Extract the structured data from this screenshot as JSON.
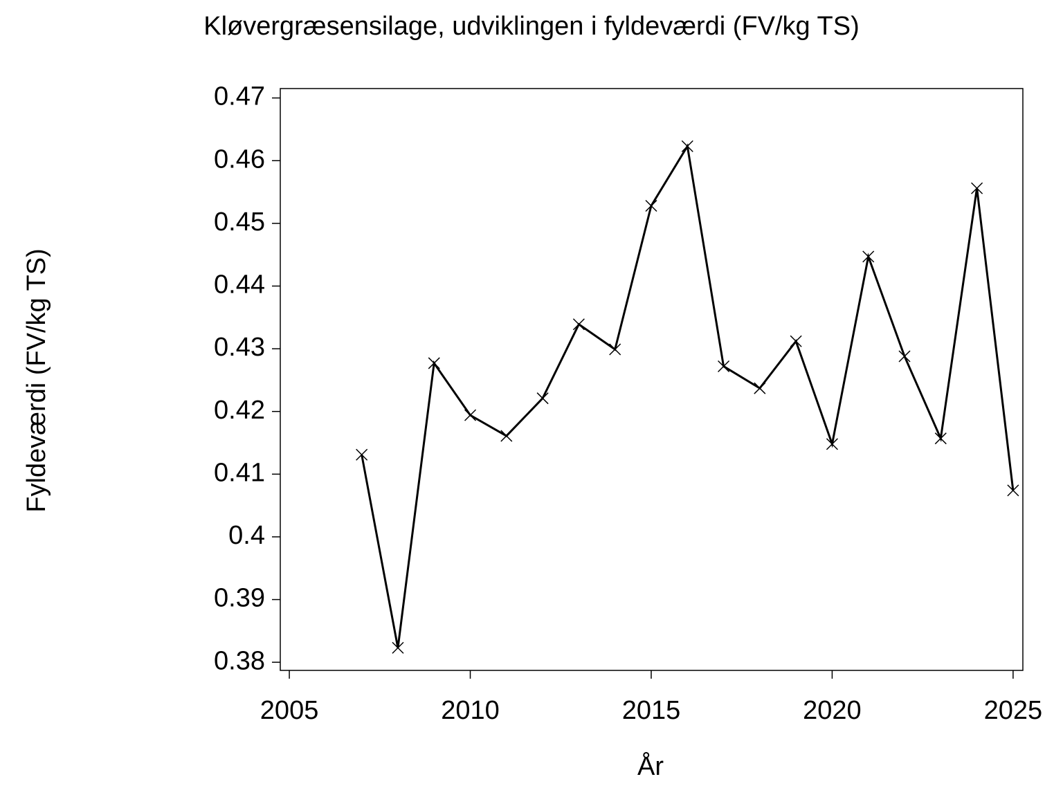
{
  "chart_data": {
    "type": "line",
    "title": "Kløvergræsensilage,  udviklingen  i  fyldeværdi  (FV/kg  TS)",
    "x_label": "År",
    "y_label": "Fyldeværdi  (FV/kg  TS)",
    "x": [
      2007,
      2008,
      2009,
      2010,
      2011,
      2012,
      2013,
      2014,
      2015,
      2016,
      2017,
      2018,
      2019,
      2020,
      2021,
      2022,
      2023,
      2024,
      2025
    ],
    "series": [
      {
        "name": "Fyldeværdi",
        "color": "#000000",
        "values": [
          0.4131,
          0.3823,
          0.4277,
          0.4194,
          0.4161,
          0.4221,
          0.4339,
          0.4299,
          0.4528,
          0.4623,
          0.4272,
          0.4237,
          0.4312,
          0.4148,
          0.4447,
          0.4288,
          0.4157,
          0.4556,
          0.4074
        ]
      }
    ],
    "xlim": [
      2004.75,
      2025.27
    ],
    "xticks": [
      2005,
      2010,
      2015,
      2020,
      2025
    ],
    "ylim": [
      0.3787,
      0.4715
    ],
    "yticks": [
      0.38,
      0.39,
      0.4,
      0.41,
      0.42,
      0.43,
      0.44,
      0.45,
      0.46,
      0.47
    ]
  }
}
